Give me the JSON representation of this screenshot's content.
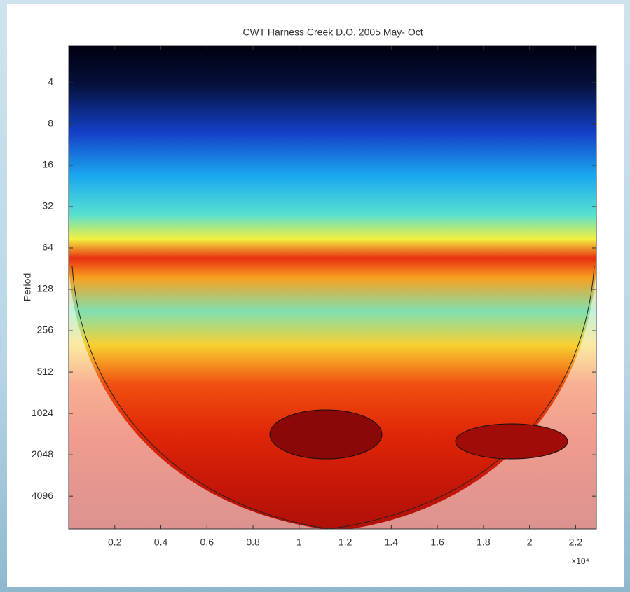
{
  "chart_data": {
    "type": "scalogram",
    "title": "CWT Harness Creek D.O. 2005 May- Oct",
    "ylabel": "Period",
    "x_exponent_label": "×10⁴",
    "xlim": [
      0,
      2.29
    ],
    "xticks": [
      0.2,
      0.4,
      0.6,
      0.8,
      1,
      1.2,
      1.4,
      1.6,
      1.8,
      2,
      2.2
    ],
    "ylim": [
      2.15,
      7100
    ],
    "yticks": [
      4,
      8,
      16,
      32,
      64,
      128,
      256,
      512,
      1024,
      2048,
      4096
    ],
    "ylog": true,
    "grid": false
  }
}
